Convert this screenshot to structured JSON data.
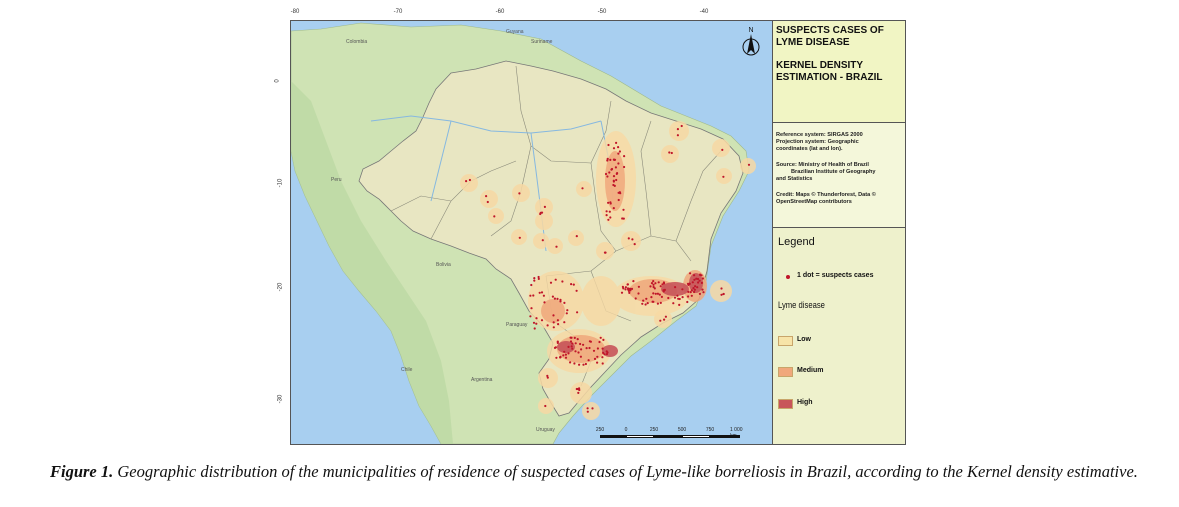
{
  "map": {
    "longitude_ticks": [
      "-80",
      "-70",
      "-60",
      "-50",
      "-40"
    ],
    "latitude_ticks": [
      "0",
      "-10",
      "-20",
      "-30"
    ],
    "north_label": "N",
    "scale_labels": [
      "250",
      "0",
      "250",
      "500",
      "750",
      "1 000 km"
    ],
    "place_labels": [
      "Colombia",
      "Guyana",
      "Suriname",
      "Peru",
      "Bolivia",
      "Paraguay",
      "Uruguay",
      "Chile",
      "Argentina"
    ],
    "colors": {
      "ocean": "#a8cff0",
      "land": "#cfe3b4",
      "brazil": "#e8e6c2",
      "density_low": "#f7d9a4",
      "density_medium": "#f3b27a",
      "density_high": "#c8555a",
      "case_dot": "#c0162a"
    }
  },
  "panel": {
    "title_line1": "SUSPECTS CASES OF",
    "title_line2": "LYME DISEASE",
    "subtitle_line1": "KERNEL DENSITY",
    "subtitle_line2": "ESTIMATION - BRAZIL",
    "ref_system": "Reference system: SIRGAS 2000",
    "projection_line1": "Projection system: Geographic",
    "projection_line2": "coordinates (lat and lon).",
    "source_line1": "Source: Ministry of Health of Brazil",
    "source_line2": "Brazilian Institute of Geography",
    "source_line3": "and Statistics",
    "credit_line1": "Credit: Maps © Thunderforest, Data ©",
    "credit_line2": "OpenStreetMap contributors"
  },
  "legend": {
    "title": "Legend",
    "dot_label": "1 dot = suspects cases",
    "layer_name": "Lyme disease",
    "classes": [
      {
        "label": "Low",
        "color": "#f7e4a8"
      },
      {
        "label": "Medium",
        "color": "#f0a87c"
      },
      {
        "label": "High",
        "color": "#c8555a"
      }
    ]
  },
  "caption": {
    "figure_label": "Figure 1.",
    "text": " Geographic distribution of the municipalities of residence of suspected cases of Lyme-like borreliosis in Brazil, according to the Kernel density estimative."
  }
}
